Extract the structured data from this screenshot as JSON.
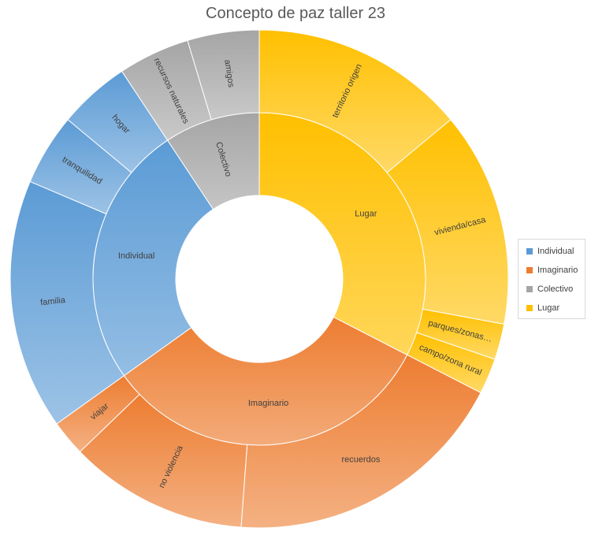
{
  "chart_data": {
    "type": "sunburst",
    "title": "Concepto de paz taller 23",
    "legend_position": "right",
    "categories": [
      {
        "name": "Lugar",
        "color": "#FFC000",
        "children": [
          {
            "name": "territorio origen",
            "value": 6
          },
          {
            "name": "vivienda/casa",
            "value": 6
          },
          {
            "name": "parques/zonas…",
            "value": 1
          },
          {
            "name": "campo/zona rural",
            "value": 1
          }
        ]
      },
      {
        "name": "Imaginario",
        "color": "#ED7D31",
        "children": [
          {
            "name": "recuerdos",
            "value": 8
          },
          {
            "name": "no violencia",
            "value": 5
          },
          {
            "name": "viajar",
            "value": 1
          }
        ]
      },
      {
        "name": "Individual",
        "color": "#5B9BD5",
        "children": [
          {
            "name": "familia",
            "value": 7
          },
          {
            "name": "tranquilidad",
            "value": 2
          },
          {
            "name": "hogar",
            "value": 2
          }
        ]
      },
      {
        "name": "Colectivo",
        "color": "#A5A5A5",
        "children": [
          {
            "name": "recursos naturales",
            "value": 2
          },
          {
            "name": "amigos",
            "value": 2
          }
        ]
      }
    ],
    "legend": [
      "Individual",
      "Imaginario",
      "Colectivo",
      "Lugar"
    ]
  }
}
